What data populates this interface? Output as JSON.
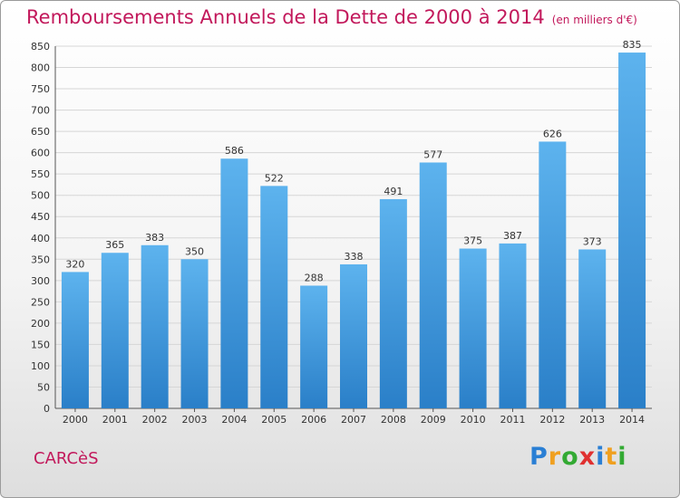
{
  "title": "Remboursements Annuels de la Dette de 2000 à 2014",
  "unit": "(en milliers d'€)",
  "city": "CARCèS",
  "brand": {
    "letters": [
      "P",
      "r",
      "o",
      "x",
      "i",
      "t",
      "i"
    ],
    "colors": [
      "#2a7fd4",
      "#f0a020",
      "#33aa33",
      "#e03030",
      "#2a7fd4",
      "#f0a020",
      "#33aa33"
    ]
  },
  "chart_data": {
    "type": "bar",
    "categories": [
      "2000",
      "2001",
      "2002",
      "2003",
      "2004",
      "2005",
      "2006",
      "2007",
      "2008",
      "2009",
      "2010",
      "2011",
      "2012",
      "2013",
      "2014"
    ],
    "values": [
      320,
      365,
      383,
      350,
      586,
      522,
      288,
      338,
      491,
      577,
      375,
      387,
      626,
      373,
      835
    ],
    "ylim": [
      0,
      850
    ],
    "yticks": [
      0,
      50,
      100,
      150,
      200,
      250,
      300,
      350,
      400,
      450,
      500,
      550,
      600,
      650,
      700,
      750,
      800,
      850
    ],
    "grid": true,
    "bar_color": "#4ba3e3"
  }
}
